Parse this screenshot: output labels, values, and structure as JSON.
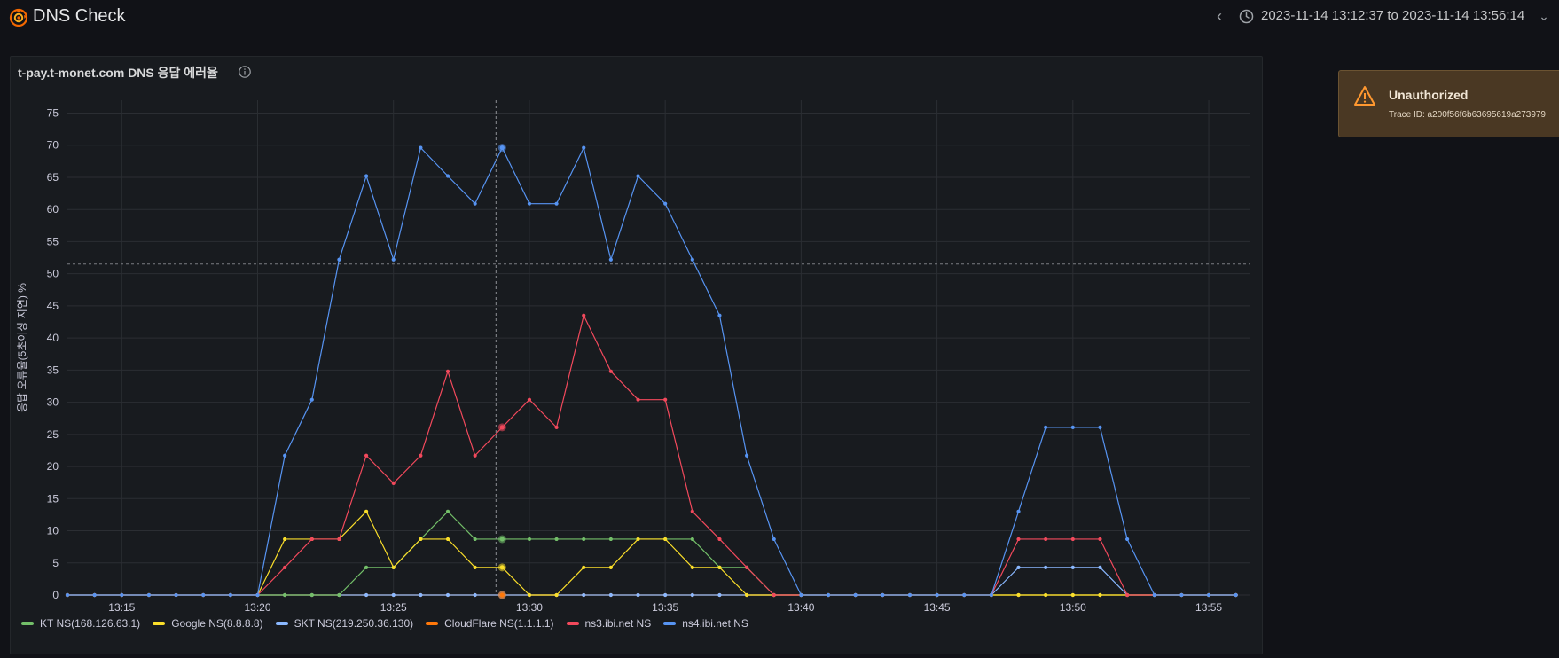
{
  "header": {
    "app_title": "DNS Check",
    "time_range": "2023-11-14 13:12:37 to 2023-11-14 13:56:14",
    "back_glyph": "‹",
    "caret_glyph": "⌄",
    "logo_icon": "grafana-logo-icon",
    "clock_icon": "clock-icon"
  },
  "panel": {
    "title": "t-pay.t-monet.com DNS 응답 에러율",
    "info_icon": "info-icon"
  },
  "toast": {
    "title": "Unauthorized",
    "trace": "Trace ID: a200f56f6b63695619a273979",
    "icon": "warning-icon",
    "color": "#4a3823"
  },
  "chart_data": {
    "type": "line",
    "ylabel": "응답 오류율(5초이상 지연) %",
    "xlabel": "",
    "ylim": [
      0,
      77
    ],
    "yticks": [
      0,
      5,
      10,
      15,
      20,
      25,
      30,
      35,
      40,
      45,
      50,
      55,
      60,
      65,
      70,
      75
    ],
    "x_start_minute": 13.0,
    "x_end_minute": 56.5,
    "xtick_labels": [
      "13:15",
      "13:20",
      "13:25",
      "13:30",
      "13:35",
      "13:40",
      "13:45",
      "13:50",
      "13:55"
    ],
    "xtick_minutes": [
      15,
      20,
      25,
      30,
      35,
      40,
      45,
      50,
      55
    ],
    "threshold_y": 51.5,
    "hover_minute": 29,
    "hover_values": [
      8.7,
      4.3,
      0,
      0,
      26.1,
      69.6
    ],
    "x_minutes": [
      13,
      14,
      15,
      16,
      17,
      18,
      19,
      20,
      21,
      22,
      23,
      24,
      25,
      26,
      27,
      28,
      29,
      30,
      31,
      32,
      33,
      34,
      35,
      36,
      37,
      38,
      39,
      40,
      41,
      42,
      43,
      44,
      45,
      46,
      47,
      48,
      49,
      50,
      51,
      52,
      53,
      54,
      55,
      56
    ],
    "series": [
      {
        "name": "KT NS(168.126.63.1)",
        "color": "#73bf69",
        "values": [
          0,
          0,
          0,
          0,
          0,
          0,
          0,
          0,
          0,
          0,
          0,
          4.3,
          4.3,
          8.7,
          13,
          8.7,
          8.7,
          8.7,
          8.7,
          8.7,
          8.7,
          8.7,
          8.7,
          8.7,
          4.3,
          4.3,
          0,
          0,
          0,
          0,
          0,
          0,
          0,
          0,
          0,
          0,
          0,
          0,
          0,
          0,
          0,
          0,
          0,
          0
        ]
      },
      {
        "name": "Google NS(8.8.8.8)",
        "color": "#fade2a",
        "values": [
          0,
          0,
          0,
          0,
          0,
          0,
          0,
          0,
          8.7,
          8.7,
          8.7,
          13,
          4.3,
          8.7,
          8.7,
          4.3,
          4.3,
          0,
          0,
          4.3,
          4.3,
          8.7,
          8.7,
          4.3,
          4.3,
          0,
          0,
          0,
          0,
          0,
          0,
          0,
          0,
          0,
          0,
          0,
          0,
          0,
          0,
          0,
          0,
          0,
          0,
          0
        ]
      },
      {
        "name": "SKT NS(219.250.36.130)",
        "color": "#8ab8ff",
        "values": [
          0,
          0,
          0,
          0,
          0,
          0,
          0,
          0,
          0,
          0,
          0,
          0,
          0,
          0,
          0,
          0,
          0,
          0,
          0,
          0,
          0,
          0,
          0,
          0,
          0,
          0,
          0,
          0,
          0,
          0,
          0,
          0,
          0,
          0,
          0,
          4.3,
          4.3,
          4.3,
          4.3,
          0,
          0,
          0,
          0,
          0
        ]
      },
      {
        "name": "CloudFlare NS(1.1.1.1)",
        "color": "#ff780a",
        "values": [
          0,
          0,
          0,
          0,
          0,
          0,
          0,
          0,
          0,
          0,
          0,
          0,
          0,
          0,
          0,
          0,
          0,
          0,
          0,
          0,
          0,
          0,
          0,
          0,
          0,
          0,
          0,
          0,
          0,
          0,
          0,
          0,
          0,
          0,
          0,
          0,
          0,
          0,
          0,
          0,
          0,
          0,
          0,
          0
        ]
      },
      {
        "name": "ns3.ibi.net NS",
        "color": "#f2495c",
        "values": [
          0,
          0,
          0,
          0,
          0,
          0,
          0,
          0,
          4.3,
          8.7,
          8.7,
          21.7,
          17.4,
          21.7,
          34.8,
          21.7,
          26.1,
          30.4,
          26.1,
          43.5,
          34.8,
          30.4,
          30.4,
          13,
          8.7,
          4.3,
          0,
          0,
          0,
          0,
          0,
          0,
          0,
          0,
          0,
          8.7,
          8.7,
          8.7,
          8.7,
          0,
          0,
          0,
          0,
          0
        ]
      },
      {
        "name": "ns4.ibi.net NS",
        "color": "#5794f2",
        "values": [
          0,
          0,
          0,
          0,
          0,
          0,
          0,
          0,
          21.7,
          30.4,
          52.2,
          65.2,
          52.2,
          69.6,
          65.2,
          60.9,
          69.6,
          60.9,
          60.9,
          69.6,
          52.2,
          65.2,
          60.9,
          52.2,
          43.5,
          21.7,
          8.7,
          0,
          0,
          0,
          0,
          0,
          0,
          0,
          0,
          13,
          26.1,
          26.1,
          26.1,
          8.7,
          0,
          0,
          0,
          0
        ]
      }
    ]
  }
}
